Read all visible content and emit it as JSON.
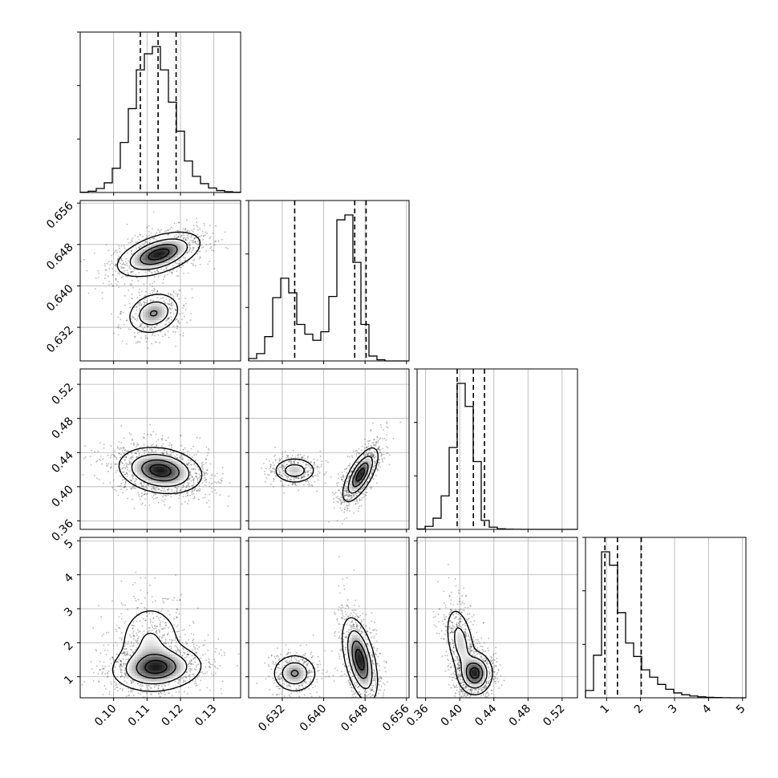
{
  "chart_data": {
    "type": "corner",
    "grid": true,
    "params": [
      {
        "range": [
          0.09,
          0.138
        ],
        "ticks": [
          0.1,
          0.11,
          0.12,
          0.13
        ],
        "tick_labels": [
          "0.10",
          "0.11",
          "0.12",
          "0.13"
        ],
        "quantiles": [
          0.108,
          0.1133,
          0.1187
        ]
      },
      {
        "range": [
          0.6255,
          0.6565
        ],
        "ticks": [
          0.632,
          0.64,
          0.648,
          0.656
        ],
        "tick_labels": [
          "0.632",
          "0.640",
          "0.648",
          "0.656"
        ],
        "quantiles": [
          0.6344,
          0.646,
          0.6482
        ]
      },
      {
        "range": [
          0.35,
          0.538
        ],
        "ticks": [
          0.36,
          0.4,
          0.44,
          0.48,
          0.52
        ],
        "tick_labels": [
          "0.36",
          "0.40",
          "0.44",
          "0.48",
          "0.52"
        ],
        "quantiles": [
          0.397,
          0.416,
          0.429
        ]
      },
      {
        "range": [
          0.38,
          5.1
        ],
        "ticks": [
          1,
          2,
          3,
          4,
          5
        ],
        "tick_labels": [
          "1",
          "2",
          "3",
          "4",
          "5"
        ],
        "quantiles": [
          0.95,
          1.32,
          2.02
        ]
      }
    ],
    "histograms": [
      {
        "bins": [
          0.09,
          0.0924,
          0.0948,
          0.0972,
          0.0996,
          0.102,
          0.1044,
          0.1068,
          0.1092,
          0.1116,
          0.114,
          0.1164,
          0.1188,
          0.1212,
          0.1236,
          0.126,
          0.1284,
          0.1308,
          0.1332,
          0.1356,
          0.138
        ],
        "counts": [
          2,
          8,
          25,
          60,
          150,
          310,
          520,
          760,
          860,
          905,
          760,
          560,
          380,
          195,
          100,
          55,
          28,
          12,
          5,
          2
        ]
      },
      {
        "bins": [
          0.6255,
          0.62705,
          0.6286,
          0.63015,
          0.6317,
          0.63325,
          0.6348,
          0.63635,
          0.6379,
          0.63945,
          0.641,
          0.64255,
          0.6441,
          0.64565,
          0.6472,
          0.64875,
          0.6503,
          0.65185,
          0.6534,
          0.65495,
          0.6565
        ],
        "counts": [
          20,
          60,
          200,
          520,
          680,
          560,
          300,
          220,
          170,
          240,
          530,
          1160,
          1200,
          810,
          300,
          40,
          10,
          0,
          0,
          0
        ]
      },
      {
        "bins": [
          0.35,
          0.3594,
          0.3688,
          0.3782,
          0.3876,
          0.397,
          0.4064,
          0.4158,
          0.4252,
          0.4346,
          0.444,
          0.4534,
          0.4628,
          0.4722,
          0.4816,
          0.491,
          0.5004,
          0.5098,
          0.5192,
          0.5286,
          0.538
        ],
        "counts": [
          5,
          40,
          150,
          450,
          1100,
          1960,
          1650,
          910,
          120,
          30,
          8,
          3,
          1,
          0,
          0,
          0,
          0,
          0,
          0,
          0
        ]
      },
      {
        "bins": [
          0.38,
          0.616,
          0.852,
          1.088,
          1.324,
          1.56,
          1.796,
          2.032,
          2.268,
          2.504,
          2.74,
          2.976,
          3.212,
          3.448,
          3.684,
          3.92,
          4.156,
          4.392,
          4.628,
          4.864,
          5.1
        ],
        "counts": [
          60,
          350,
          1200,
          1090,
          700,
          450,
          340,
          230,
          170,
          110,
          70,
          40,
          25,
          15,
          8,
          4,
          2,
          1,
          0,
          0
        ]
      }
    ],
    "joint_modes": {
      "1,0": [
        {
          "mx": 0.1135,
          "my": 0.6461,
          "sx": 0.0055,
          "sy": 0.0019,
          "rho": 0.5,
          "w": 0.7
        },
        {
          "mx": 0.112,
          "my": 0.6347,
          "sx": 0.0035,
          "sy": 0.0018,
          "rho": 0.2,
          "w": 0.3
        }
      ],
      "2,0": [
        {
          "mx": 0.114,
          "my": 0.419,
          "sx": 0.0055,
          "sy": 0.012,
          "rho": -0.2,
          "w": 1.0
        }
      ],
      "2,1": [
        {
          "mx": 0.6344,
          "my": 0.419,
          "sx": 0.0019,
          "sy": 0.007,
          "rho": 0.0,
          "w": 0.3
        },
        {
          "mx": 0.6471,
          "my": 0.414,
          "sx": 0.0015,
          "sy": 0.014,
          "rho": 0.7,
          "w": 0.7
        }
      ],
      "3,0": [
        {
          "mx": 0.113,
          "my": 1.25,
          "sx": 0.006,
          "sy": 0.3,
          "rho": 0.1,
          "w": 0.65
        },
        {
          "mx": 0.111,
          "my": 2.0,
          "sx": 0.0045,
          "sy": 0.55,
          "rho": 0.0,
          "w": 0.35
        }
      ],
      "3,1": [
        {
          "mx": 0.6344,
          "my": 1.1,
          "sx": 0.0019,
          "sy": 0.25,
          "rho": 0.0,
          "w": 0.3
        },
        {
          "mx": 0.647,
          "my": 1.5,
          "sx": 0.0015,
          "sy": 0.55,
          "rho": -0.5,
          "w": 0.7
        }
      ],
      "3,2": [
        {
          "mx": 0.418,
          "my": 1.1,
          "sx": 0.009,
          "sy": 0.28,
          "rho": 0.0,
          "w": 0.6
        },
        {
          "mx": 0.401,
          "my": 2.0,
          "sx": 0.008,
          "sy": 0.5,
          "rho": -0.4,
          "w": 0.4
        }
      ]
    }
  }
}
